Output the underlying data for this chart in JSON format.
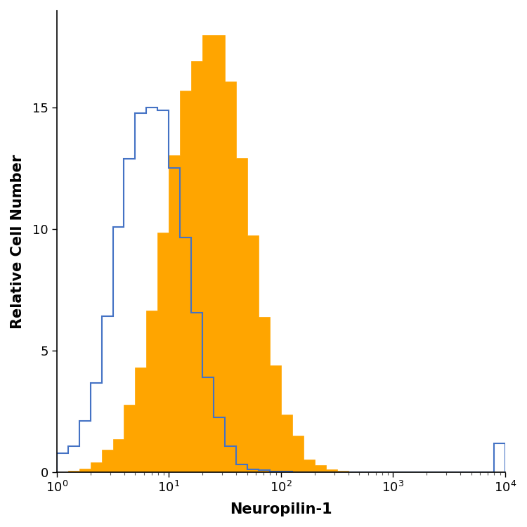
{
  "xlabel": "Neuropilin-1",
  "ylabel": "Relative Cell Number",
  "xlim": [
    1,
    10000
  ],
  "ylim": [
    0,
    19
  ],
  "yticks": [
    0,
    5,
    10,
    15
  ],
  "background_color": "#ffffff",
  "orange_color": "#FFA500",
  "blue_color": "#4472C4",
  "orange_alpha": 1.0,
  "blue_linewidth": 1.5,
  "bins_per_decade": 10,
  "label_fontsize": 15,
  "tick_fontsize": 13,
  "blue_peak_x": 7,
  "blue_scale": 0.28,
  "orange_peak_x": 25,
  "orange_scale": 0.32
}
